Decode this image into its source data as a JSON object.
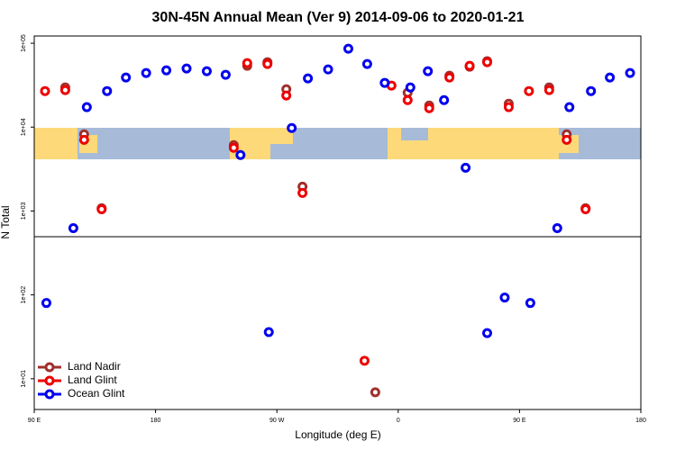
{
  "chart_data": {
    "type": "scatter",
    "title": "30N-45N Annual Mean (Ver 9)   2014-09-06 to 2020-01-21",
    "x_label": "Longitude (deg E)",
    "y_label": "N Total",
    "log_y": true,
    "legend": "lower left",
    "xlim": [
      90,
      540
    ],
    "xticks": [
      {
        "value": 90,
        "label": "90 E"
      },
      180,
      {
        "value": 270,
        "label": "90 W"
      },
      {
        "value": 360,
        "label": "0"
      },
      {
        "value": 450,
        "label": "90 E"
      },
      {
        "value": 540,
        "label": "180"
      }
    ],
    "ylim": [
      4.3,
      122000
    ],
    "yticks": [
      {
        "value": 100000,
        "label": "1e+05"
      },
      {
        "value": 10000,
        "label": "1e+04"
      },
      {
        "value": 1000,
        "label": "1e+03"
      },
      {
        "value": 100,
        "label": "1e+02"
      },
      {
        "value": 10,
        "label": "1e+01"
      }
    ],
    "series": [
      {
        "name": "Land Nadir",
        "color": "#a0302c",
        "x": [
          113,
          127,
          140,
          238,
          248,
          263,
          277,
          289,
          343,
          367,
          383,
          398,
          413,
          426,
          442,
          472,
          485,
          499
        ],
        "values": [
          29700,
          8200,
          1080,
          6100,
          53800,
          59500,
          28300,
          1950,
          6.9,
          25700,
          18100,
          41000,
          52500,
          61000,
          19000,
          29700,
          8200,
          1080
        ]
      },
      {
        "name": "Land Glint",
        "color": "#ee0000",
        "x": [
          98,
          113,
          127,
          140,
          238,
          248,
          263,
          277,
          289,
          335,
          355,
          367,
          383,
          398,
          413,
          426,
          442,
          457,
          472,
          485,
          499
        ],
        "values": [
          26900,
          27600,
          7060,
          1050,
          5660,
          58000,
          56600,
          23800,
          1640,
          16.4,
          31300,
          21000,
          16800,
          39000,
          53800,
          59500,
          17300,
          26900,
          27600,
          7060,
          1050
        ]
      },
      {
        "name": "Ocean Glint",
        "color": "#0000ee",
        "x": [
          99,
          119,
          129,
          144,
          158,
          173,
          188,
          203,
          218,
          232,
          243,
          264,
          281,
          293,
          308,
          323,
          337,
          350,
          369,
          382,
          394,
          410,
          426,
          439,
          458,
          478,
          487,
          503,
          517,
          532
        ],
        "values": [
          80,
          625,
          17300,
          26900,
          39000,
          44200,
          47500,
          50000,
          46400,
          42100,
          4650,
          36,
          9750,
          38100,
          48700,
          86100,
          56600,
          33700,
          29700,
          46400,
          21000,
          3280,
          35,
          93,
          80,
          625,
          17300,
          26900,
          39000,
          44200
        ]
      }
    ]
  }
}
